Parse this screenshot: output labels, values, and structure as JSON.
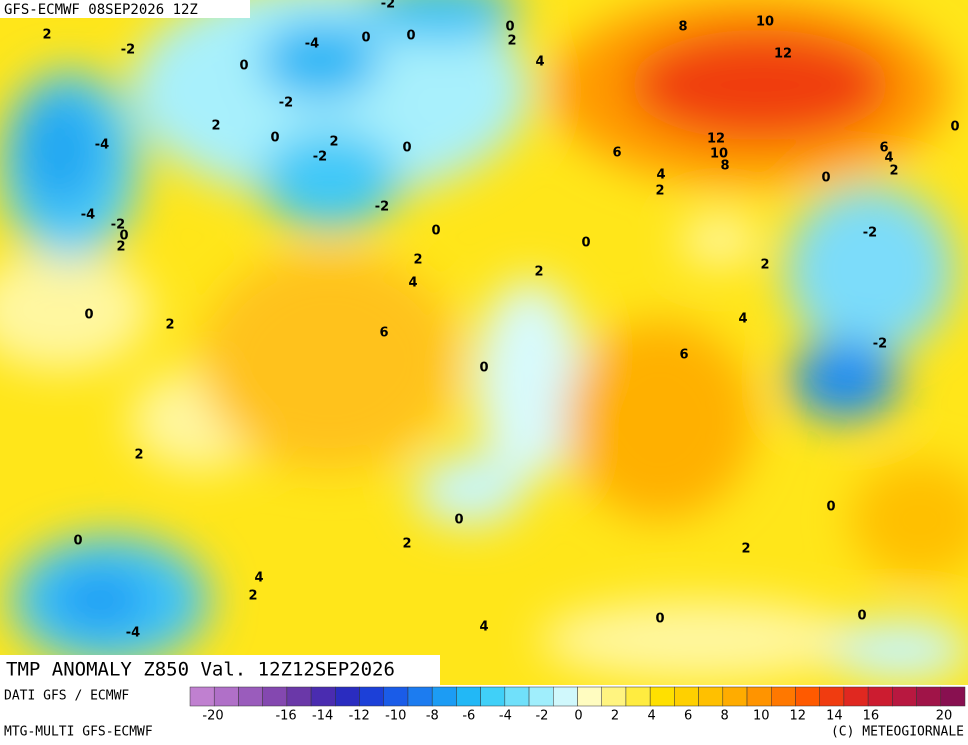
{
  "header": {
    "title": "GFS-ECMWF 08SEP2026 12Z"
  },
  "map": {
    "title": "TMP ANOMALY Z850 Val. 12Z12SEP2026",
    "contour_labels": [
      "2",
      "-2",
      "0",
      "-4",
      "0",
      "-2",
      "0",
      "2",
      "0",
      "8",
      "10",
      "12",
      "4",
      "-2",
      "2",
      "0",
      "2",
      "-2",
      "0",
      "-4",
      "6",
      "12",
      "10",
      "8",
      "6",
      "4",
      "2",
      "0",
      "4",
      "2",
      "0",
      "-4",
      "-2",
      "0",
      "2",
      "-2",
      "0",
      "0",
      "-2",
      "2",
      "4",
      "2",
      "2",
      "0",
      "2",
      "6",
      "4",
      "-2",
      "6",
      "0",
      "2",
      "0",
      "0",
      "0",
      "2",
      "2",
      "4",
      "2",
      "0",
      "0",
      "-4",
      "4"
    ]
  },
  "footer": {
    "source": "DATI GFS / ECMWF",
    "model": "MTG-MULTI GFS-ECMWF",
    "copyright": "(C) METEOGIORNALE"
  },
  "legend": {
    "labels": [
      "-20",
      "-16",
      "-14",
      "-12",
      "-10",
      "-8",
      "-6",
      "-4",
      "-2",
      "0",
      "2",
      "4",
      "6",
      "8",
      "10",
      "12",
      "14",
      "16",
      "20"
    ],
    "colors": [
      "#c080d0",
      "#b070c8",
      "#9a5cbc",
      "#8448b0",
      "#6a38a8",
      "#4a2cb0",
      "#2a2cc0",
      "#1c40d8",
      "#1a5ce8",
      "#1c7cf0",
      "#1c9cf4",
      "#22b8f6",
      "#40d0f8",
      "#70e0fa",
      "#a0eefc",
      "#d0f8fc",
      "#fffcc0",
      "#fff480",
      "#ffec40",
      "#ffe000",
      "#ffd000",
      "#ffc000",
      "#ffac00",
      "#ff9400",
      "#ff7800",
      "#ff5a00",
      "#f03c10",
      "#e02820",
      "#cc1c30",
      "#b81840",
      "#a01448",
      "#881050"
    ]
  }
}
